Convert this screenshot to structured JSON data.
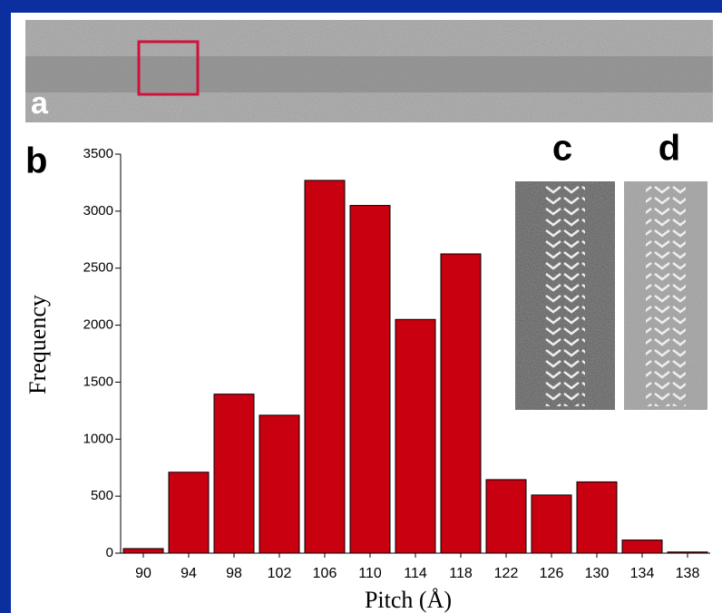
{
  "chart_data": {
    "type": "bar",
    "annotations": [
      "a",
      "b",
      "c",
      "d"
    ],
    "xlabel": "Pitch (Å)",
    "ylabel": "Frequency",
    "categories": [
      "90",
      "94",
      "98",
      "102",
      "106",
      "110",
      "114",
      "118",
      "122",
      "126",
      "130",
      "134",
      "138"
    ],
    "values": [
      40,
      710,
      1395,
      1210,
      3270,
      3050,
      2050,
      2625,
      645,
      510,
      625,
      115,
      10
    ],
    "color": "#c8000f",
    "ylim": [
      0,
      3500
    ],
    "yticks": [
      0,
      500,
      1000,
      1500,
      2000,
      2500,
      3000,
      3500
    ]
  }
}
